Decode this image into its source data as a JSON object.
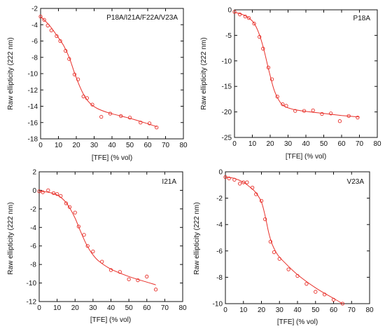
{
  "style": {
    "point_color": "#e8302a",
    "line_color": "#e8302a",
    "axis_color": "#111111"
  },
  "chart_data": [
    {
      "type": "scatter",
      "title": "P18A/I21A/F22A/V23A",
      "xlabel": "[TFE] (% vol)",
      "ylabel": "Raw ellipticity (222 nm)",
      "xlim": [
        0,
        80
      ],
      "ylim": [
        -18,
        -2
      ],
      "xticks": [
        0,
        10,
        20,
        30,
        40,
        50,
        60,
        70,
        80
      ],
      "yticks": [
        -18,
        -16,
        -14,
        -12,
        -10,
        -8,
        -6,
        -4,
        -2
      ],
      "points": [
        [
          0,
          -3.0
        ],
        [
          2,
          -3.4
        ],
        [
          4,
          -4.1
        ],
        [
          6,
          -4.7
        ],
        [
          9,
          -5.4
        ],
        [
          11,
          -6.0
        ],
        [
          14,
          -7.2
        ],
        [
          16,
          -8.2
        ],
        [
          19,
          -10.1
        ],
        [
          21,
          -10.7
        ],
        [
          24,
          -12.8
        ],
        [
          26,
          -13.0
        ],
        [
          29,
          -13.8
        ],
        [
          34,
          -15.3
        ],
        [
          39,
          -14.9
        ],
        [
          45,
          -15.2
        ],
        [
          50,
          -15.4
        ],
        [
          56,
          -16.0
        ],
        [
          61,
          -16.1
        ],
        [
          65,
          -16.6
        ]
      ],
      "fit": [
        [
          0,
          -3.0
        ],
        [
          5,
          -4.1
        ],
        [
          10,
          -5.6
        ],
        [
          13,
          -6.6
        ],
        [
          16,
          -8.0
        ],
        [
          19,
          -9.9
        ],
        [
          22,
          -11.6
        ],
        [
          25,
          -12.9
        ],
        [
          28,
          -13.7
        ],
        [
          32,
          -14.3
        ],
        [
          38,
          -14.8
        ],
        [
          45,
          -15.2
        ],
        [
          52,
          -15.6
        ],
        [
          58,
          -16.0
        ],
        [
          65,
          -16.5
        ]
      ]
    },
    {
      "type": "scatter",
      "title": "P18A",
      "xlabel": "[TFE] (% vol)",
      "ylabel": "Raw ellipticity (222 nm)",
      "xlim": [
        0,
        80
      ],
      "ylim": [
        -25,
        0
      ],
      "xticks": [
        0,
        10,
        20,
        30,
        40,
        50,
        60,
        70,
        80
      ],
      "yticks": [
        -25,
        -20,
        -15,
        -10,
        -5,
        0
      ],
      "points": [
        [
          0,
          -0.4
        ],
        [
          3,
          -0.9
        ],
        [
          6,
          -1.3
        ],
        [
          8,
          -1.6
        ],
        [
          11,
          -2.7
        ],
        [
          14,
          -5.3
        ],
        [
          16,
          -7.6
        ],
        [
          19,
          -11.3
        ],
        [
          21,
          -13.6
        ],
        [
          24,
          -17.0
        ],
        [
          27,
          -18.5
        ],
        [
          29,
          -18.8
        ],
        [
          34,
          -19.8
        ],
        [
          39,
          -19.8
        ],
        [
          44,
          -19.7
        ],
        [
          49,
          -20.4
        ],
        [
          54,
          -20.3
        ],
        [
          59,
          -21.8
        ],
        [
          64,
          -20.8
        ],
        [
          69,
          -21.1
        ]
      ],
      "fit": [
        [
          0,
          -0.5
        ],
        [
          5,
          -1.0
        ],
        [
          10,
          -2.2
        ],
        [
          13,
          -4.0
        ],
        [
          16,
          -7.2
        ],
        [
          19,
          -11.5
        ],
        [
          22,
          -15.5
        ],
        [
          25,
          -17.8
        ],
        [
          28,
          -18.9
        ],
        [
          33,
          -19.5
        ],
        [
          40,
          -19.9
        ],
        [
          50,
          -20.3
        ],
        [
          60,
          -20.7
        ],
        [
          70,
          -21.0
        ]
      ]
    },
    {
      "type": "scatter",
      "title": "I21A",
      "xlabel": "[TFE] (% vol)",
      "ylabel": "Raw ellipticity (222 nm)",
      "xlim": [
        0,
        80
      ],
      "ylim": [
        -12,
        2
      ],
      "xticks": [
        0,
        10,
        20,
        30,
        40,
        50,
        60,
        70,
        80
      ],
      "yticks": [
        -12,
        -10,
        -8,
        -6,
        -4,
        -2,
        0,
        2
      ],
      "points": [
        [
          0,
          -0.1
        ],
        [
          2,
          -0.2
        ],
        [
          5,
          0.0
        ],
        [
          8,
          -0.3
        ],
        [
          10,
          -0.4
        ],
        [
          12,
          -0.6
        ],
        [
          15,
          -1.4
        ],
        [
          17,
          -1.8
        ],
        [
          20,
          -2.4
        ],
        [
          22,
          -3.9
        ],
        [
          25,
          -4.8
        ],
        [
          27,
          -6.0
        ],
        [
          30,
          -6.6
        ],
        [
          35,
          -7.7
        ],
        [
          40,
          -8.6
        ],
        [
          45,
          -8.8
        ],
        [
          50,
          -9.6
        ],
        [
          55,
          -9.7
        ],
        [
          60,
          -9.3
        ],
        [
          65,
          -10.7
        ]
      ],
      "fit": [
        [
          0,
          -0.1
        ],
        [
          5,
          -0.2
        ],
        [
          10,
          -0.5
        ],
        [
          14,
          -1.1
        ],
        [
          17,
          -1.9
        ],
        [
          20,
          -3.0
        ],
        [
          23,
          -4.4
        ],
        [
          26,
          -5.7
        ],
        [
          29,
          -6.7
        ],
        [
          33,
          -7.6
        ],
        [
          40,
          -8.5
        ],
        [
          50,
          -9.3
        ],
        [
          60,
          -9.9
        ],
        [
          65,
          -10.2
        ]
      ]
    },
    {
      "type": "scatter",
      "title": "V23A",
      "xlabel": "[TFE] (% vol)",
      "ylabel": "Raw ellipticity (222 nm)",
      "xlim": [
        0,
        80
      ],
      "ylim": [
        -10,
        0
      ],
      "xticks": [
        0,
        10,
        20,
        30,
        40,
        50,
        60,
        70,
        80
      ],
      "yticks": [
        -10,
        -8,
        -6,
        -4,
        -2,
        0
      ],
      "points": [
        [
          0,
          -0.4
        ],
        [
          2,
          -0.5
        ],
        [
          5,
          -0.6
        ],
        [
          8,
          -0.9
        ],
        [
          10,
          -0.8
        ],
        [
          12,
          -0.8
        ],
        [
          15,
          -1.2
        ],
        [
          17,
          -1.7
        ],
        [
          20,
          -2.2
        ],
        [
          22,
          -3.6
        ],
        [
          25,
          -5.3
        ],
        [
          27,
          -6.1
        ],
        [
          30,
          -6.6
        ],
        [
          35,
          -7.4
        ],
        [
          40,
          -7.9
        ],
        [
          45,
          -8.5
        ],
        [
          50,
          -9.1
        ],
        [
          55,
          -9.3
        ],
        [
          60,
          -9.7
        ],
        [
          65,
          -10.0
        ]
      ],
      "fit": [
        [
          0,
          -0.4
        ],
        [
          5,
          -0.5
        ],
        [
          10,
          -0.8
        ],
        [
          14,
          -1.2
        ],
        [
          17,
          -1.6
        ],
        [
          20,
          -2.3
        ],
        [
          22,
          -3.3
        ],
        [
          24,
          -4.6
        ],
        [
          26,
          -5.5
        ],
        [
          29,
          -6.3
        ],
        [
          33,
          -6.9
        ],
        [
          40,
          -7.8
        ],
        [
          50,
          -8.8
        ],
        [
          60,
          -9.6
        ],
        [
          65,
          -10.0
        ]
      ]
    }
  ]
}
